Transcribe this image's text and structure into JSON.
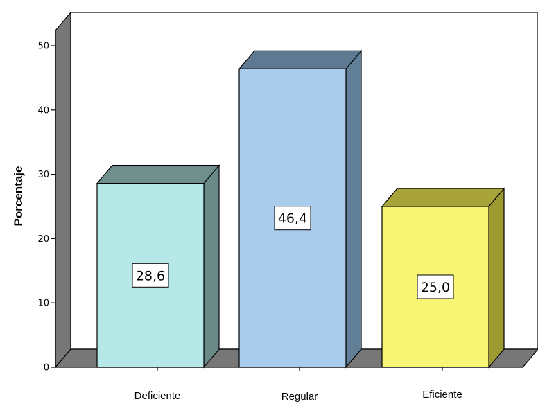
{
  "chart_data": {
    "type": "bar",
    "style": "3d",
    "categories": [
      "Deficiente",
      "Regular",
      "Eficiente"
    ],
    "values": [
      28.6,
      46.4,
      25.0
    ],
    "data_labels": [
      "28,6",
      "46,4",
      "25,0"
    ],
    "ylabel": "Porcentaje",
    "xlabel": "",
    "ylim": [
      0,
      50
    ],
    "yticks": [
      0,
      10,
      20,
      30,
      40,
      50
    ],
    "grid": false,
    "colors": {
      "front": [
        "#b5e8e6",
        "#a9cced",
        "#f8f575"
      ],
      "top": [
        "#6e8f8c",
        "#5e7a93",
        "#a8a43a"
      ],
      "side": [
        "#6a8a88",
        "#617e97",
        "#9e9a32"
      ],
      "back_wall": "#ffffff",
      "left_wall": "#777777",
      "floor": "#777777"
    }
  }
}
